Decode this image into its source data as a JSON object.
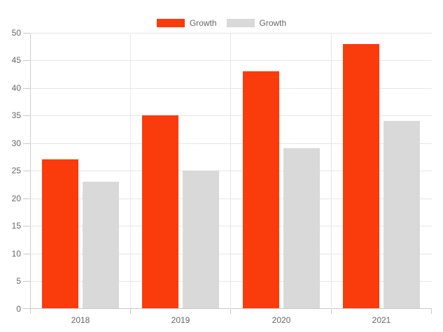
{
  "chart_data": {
    "type": "bar",
    "title": "",
    "categories": [
      "2018",
      "2019",
      "2020",
      "2021"
    ],
    "series": [
      {
        "name": "Growth",
        "color": "#fa3b0c",
        "values": [
          27,
          35,
          43,
          48
        ]
      },
      {
        "name": "Growth",
        "color": "#d9d9d9",
        "values": [
          23,
          25,
          29,
          34
        ]
      }
    ],
    "xlabel": "",
    "ylabel": "",
    "ylim": [
      0,
      50
    ],
    "ytick_step": 5,
    "y_tick_labels": [
      "0",
      "5",
      "10",
      "15",
      "20",
      "25",
      "30",
      "35",
      "40",
      "45",
      "50"
    ],
    "grid": true,
    "legend_position": "top-center"
  },
  "colors": {
    "grid": "#e6e6e6",
    "axis": "#c9c9c9",
    "text": "#666666",
    "background": "#ffffff",
    "series_orange": "#fa3b0c",
    "series_gray": "#d9d9d9"
  }
}
